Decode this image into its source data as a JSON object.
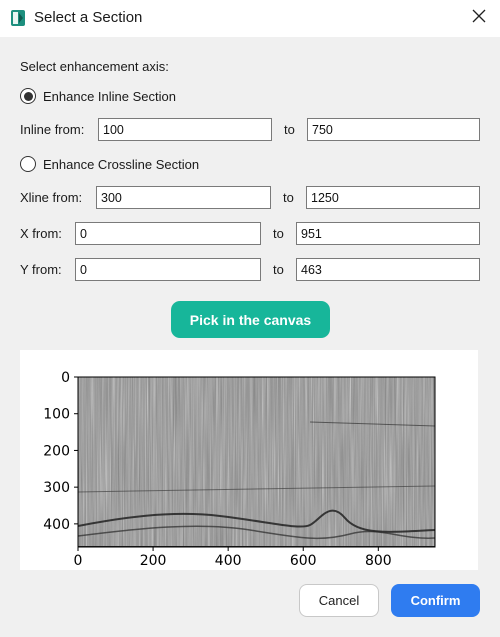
{
  "window": {
    "title": "Select a Section",
    "icon": "app-icon",
    "close_icon": "close-icon"
  },
  "form": {
    "axis_prompt": "Select enhancement axis:",
    "inline_radio_label": "Enhance Inline Section",
    "inline_radio_checked": true,
    "inline_from_label": "Inline from:",
    "inline_from_value": "100",
    "inline_to_label": "to",
    "inline_to_value": "750",
    "crossline_radio_label": "Enhance Crossline Section",
    "crossline_radio_checked": false,
    "xline_from_label": "Xline from:",
    "xline_from_value": "300",
    "xline_to_label": "to",
    "xline_to_value": "1250",
    "x_from_label": "X from:",
    "x_from_value": "0",
    "x_to_label": "to",
    "x_to_value": "951",
    "y_from_label": "Y from:",
    "y_from_value": "0",
    "y_to_label": "to",
    "y_to_value": "463"
  },
  "pick_button": {
    "label": "Pick in the canvas",
    "color": "#17b69a"
  },
  "preview": {
    "image_type": "grayscale seismic section",
    "x_ticks": [
      "0",
      "200",
      "400",
      "600",
      "800"
    ],
    "y_ticks": [
      "0",
      "100",
      "200",
      "300",
      "400"
    ],
    "xlim": [
      0,
      951
    ],
    "ylim": [
      463,
      0
    ]
  },
  "footer": {
    "cancel_label": "Cancel",
    "confirm_label": "Confirm",
    "confirm_color": "#2f7cf0"
  }
}
